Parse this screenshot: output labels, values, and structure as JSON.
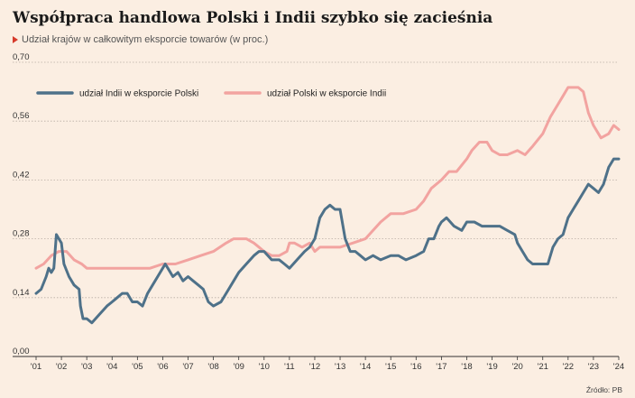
{
  "header": {
    "title": "Współpraca handlowa Polski i Indii szybko się zacieśnia",
    "subtitle": "Udział krajów w całkowitym eksporcie towarów (w proc.)"
  },
  "footer": {
    "source": "Źródło: PB"
  },
  "colors": {
    "background": "#fbeee2",
    "india_in_poland": "#4e7189",
    "poland_in_india": "#f2a3a0",
    "subtitle_marker": "#d63a2b"
  },
  "chart_data": {
    "type": "line",
    "title": "Współpraca handlowa Polski i Indii szybko się zacieśnia",
    "subtitle": "Udział krajów w całkowitym eksporcie towarów (w proc.)",
    "xlabel": "",
    "ylabel": "",
    "xlim": [
      2001.0,
      2024.0
    ],
    "ylim": [
      0.0,
      0.7
    ],
    "y_ticks": [
      0.0,
      0.14,
      0.28,
      0.42,
      0.56,
      0.7
    ],
    "y_tick_labels": [
      "0,00",
      "0,14",
      "0,28",
      "0,42",
      "0,56",
      "0,70"
    ],
    "x_ticks": [
      2001,
      2002,
      2003,
      2004,
      2005,
      2006,
      2007,
      2008,
      2009,
      2010,
      2011,
      2012,
      2013,
      2014,
      2015,
      2016,
      2017,
      2018,
      2019,
      2020,
      2021,
      2022,
      2023,
      2024
    ],
    "x_tick_labels": [
      "'01",
      "'02",
      "'03",
      "'04",
      "'05",
      "'06",
      "'07",
      "'08",
      "'09",
      "'10",
      "'11",
      "'12",
      "'13",
      "'14",
      "'15",
      "'16",
      "'17",
      "'18",
      "'19",
      "'20",
      "'21",
      "'22",
      "'23",
      "'24"
    ],
    "grid": "horizontal dotted",
    "legend_position": "top-left",
    "series": [
      {
        "name": "udział Indii w eksporcie Polski",
        "color": "#4e7189",
        "x": [
          2001.0,
          2001.2,
          2001.4,
          2001.5,
          2001.6,
          2001.7,
          2001.8,
          2001.9,
          2002.0,
          2002.1,
          2002.3,
          2002.5,
          2002.7,
          2002.75,
          2002.85,
          2003.0,
          2003.2,
          2003.5,
          2003.8,
          2004.0,
          2004.2,
          2004.4,
          2004.6,
          2004.8,
          2005.0,
          2005.2,
          2005.4,
          2005.6,
          2005.8,
          2006.0,
          2006.1,
          2006.2,
          2006.4,
          2006.6,
          2006.8,
          2007.0,
          2007.2,
          2007.4,
          2007.6,
          2007.8,
          2008.0,
          2008.3,
          2008.6,
          2008.8,
          2009.0,
          2009.3,
          2009.6,
          2009.8,
          2010.0,
          2010.3,
          2010.6,
          2010.8,
          2011.0,
          2011.3,
          2011.6,
          2011.8,
          2012.0,
          2012.2,
          2012.4,
          2012.6,
          2012.8,
          2013.0,
          2013.2,
          2013.4,
          2013.6,
          2013.8,
          2014.0,
          2014.3,
          2014.6,
          2015.0,
          2015.3,
          2015.6,
          2016.0,
          2016.3,
          2016.5,
          2016.7,
          2016.9,
          2017.0,
          2017.2,
          2017.5,
          2017.8,
          2018.0,
          2018.3,
          2018.6,
          2019.0,
          2019.3,
          2019.6,
          2019.9,
          2020.0,
          2020.2,
          2020.4,
          2020.6,
          2020.8,
          2021.0,
          2021.2,
          2021.4,
          2021.6,
          2021.8,
          2022.0,
          2022.2,
          2022.4,
          2022.6,
          2022.8,
          2023.0,
          2023.2,
          2023.4,
          2023.6,
          2023.8,
          2024.0
        ],
        "values": [
          0.15,
          0.16,
          0.19,
          0.21,
          0.2,
          0.21,
          0.29,
          0.28,
          0.27,
          0.22,
          0.19,
          0.17,
          0.16,
          0.12,
          0.09,
          0.09,
          0.08,
          0.1,
          0.12,
          0.13,
          0.14,
          0.15,
          0.15,
          0.13,
          0.13,
          0.12,
          0.15,
          0.17,
          0.19,
          0.21,
          0.22,
          0.21,
          0.19,
          0.2,
          0.18,
          0.19,
          0.18,
          0.17,
          0.16,
          0.13,
          0.12,
          0.13,
          0.16,
          0.18,
          0.2,
          0.22,
          0.24,
          0.25,
          0.25,
          0.23,
          0.23,
          0.22,
          0.21,
          0.23,
          0.25,
          0.26,
          0.28,
          0.33,
          0.35,
          0.36,
          0.35,
          0.35,
          0.28,
          0.25,
          0.25,
          0.24,
          0.23,
          0.24,
          0.23,
          0.24,
          0.24,
          0.23,
          0.24,
          0.25,
          0.28,
          0.28,
          0.31,
          0.32,
          0.33,
          0.31,
          0.3,
          0.32,
          0.32,
          0.31,
          0.31,
          0.31,
          0.3,
          0.29,
          0.27,
          0.25,
          0.23,
          0.22,
          0.22,
          0.22,
          0.22,
          0.26,
          0.28,
          0.29,
          0.33,
          0.35,
          0.37,
          0.39,
          0.41,
          0.4,
          0.39,
          0.41,
          0.45,
          0.47,
          0.47
        ]
      },
      {
        "name": "udział Polski w eksporcie Indii",
        "color": "#f2a3a0",
        "x": [
          2001.0,
          2001.3,
          2001.6,
          2001.9,
          2002.2,
          2002.5,
          2002.8,
          2003.0,
          2003.5,
          2004.0,
          2004.5,
          2005.0,
          2005.5,
          2006.0,
          2006.5,
          2007.0,
          2007.5,
          2008.0,
          2008.5,
          2008.8,
          2009.0,
          2009.3,
          2009.6,
          2009.8,
          2010.0,
          2010.3,
          2010.6,
          2010.9,
          2011.0,
          2011.2,
          2011.5,
          2011.8,
          2012.0,
          2012.2,
          2012.5,
          2012.8,
          2013.0,
          2013.5,
          2014.0,
          2014.3,
          2014.6,
          2015.0,
          2015.5,
          2016.0,
          2016.3,
          2016.6,
          2017.0,
          2017.3,
          2017.6,
          2018.0,
          2018.2,
          2018.5,
          2018.8,
          2019.0,
          2019.3,
          2019.6,
          2020.0,
          2020.3,
          2020.6,
          2021.0,
          2021.3,
          2021.6,
          2021.8,
          2022.0,
          2022.2,
          2022.4,
          2022.6,
          2022.8,
          2023.0,
          2023.3,
          2023.6,
          2023.8,
          2024.0
        ],
        "values": [
          0.21,
          0.22,
          0.24,
          0.25,
          0.25,
          0.23,
          0.22,
          0.21,
          0.21,
          0.21,
          0.21,
          0.21,
          0.21,
          0.22,
          0.22,
          0.23,
          0.24,
          0.25,
          0.27,
          0.28,
          0.28,
          0.28,
          0.27,
          0.26,
          0.25,
          0.24,
          0.24,
          0.25,
          0.27,
          0.27,
          0.26,
          0.27,
          0.25,
          0.26,
          0.26,
          0.26,
          0.26,
          0.27,
          0.28,
          0.3,
          0.32,
          0.34,
          0.34,
          0.35,
          0.37,
          0.4,
          0.42,
          0.44,
          0.44,
          0.47,
          0.49,
          0.51,
          0.51,
          0.49,
          0.48,
          0.48,
          0.49,
          0.48,
          0.5,
          0.53,
          0.57,
          0.6,
          0.62,
          0.64,
          0.64,
          0.64,
          0.63,
          0.58,
          0.55,
          0.52,
          0.53,
          0.55,
          0.54
        ]
      }
    ]
  }
}
